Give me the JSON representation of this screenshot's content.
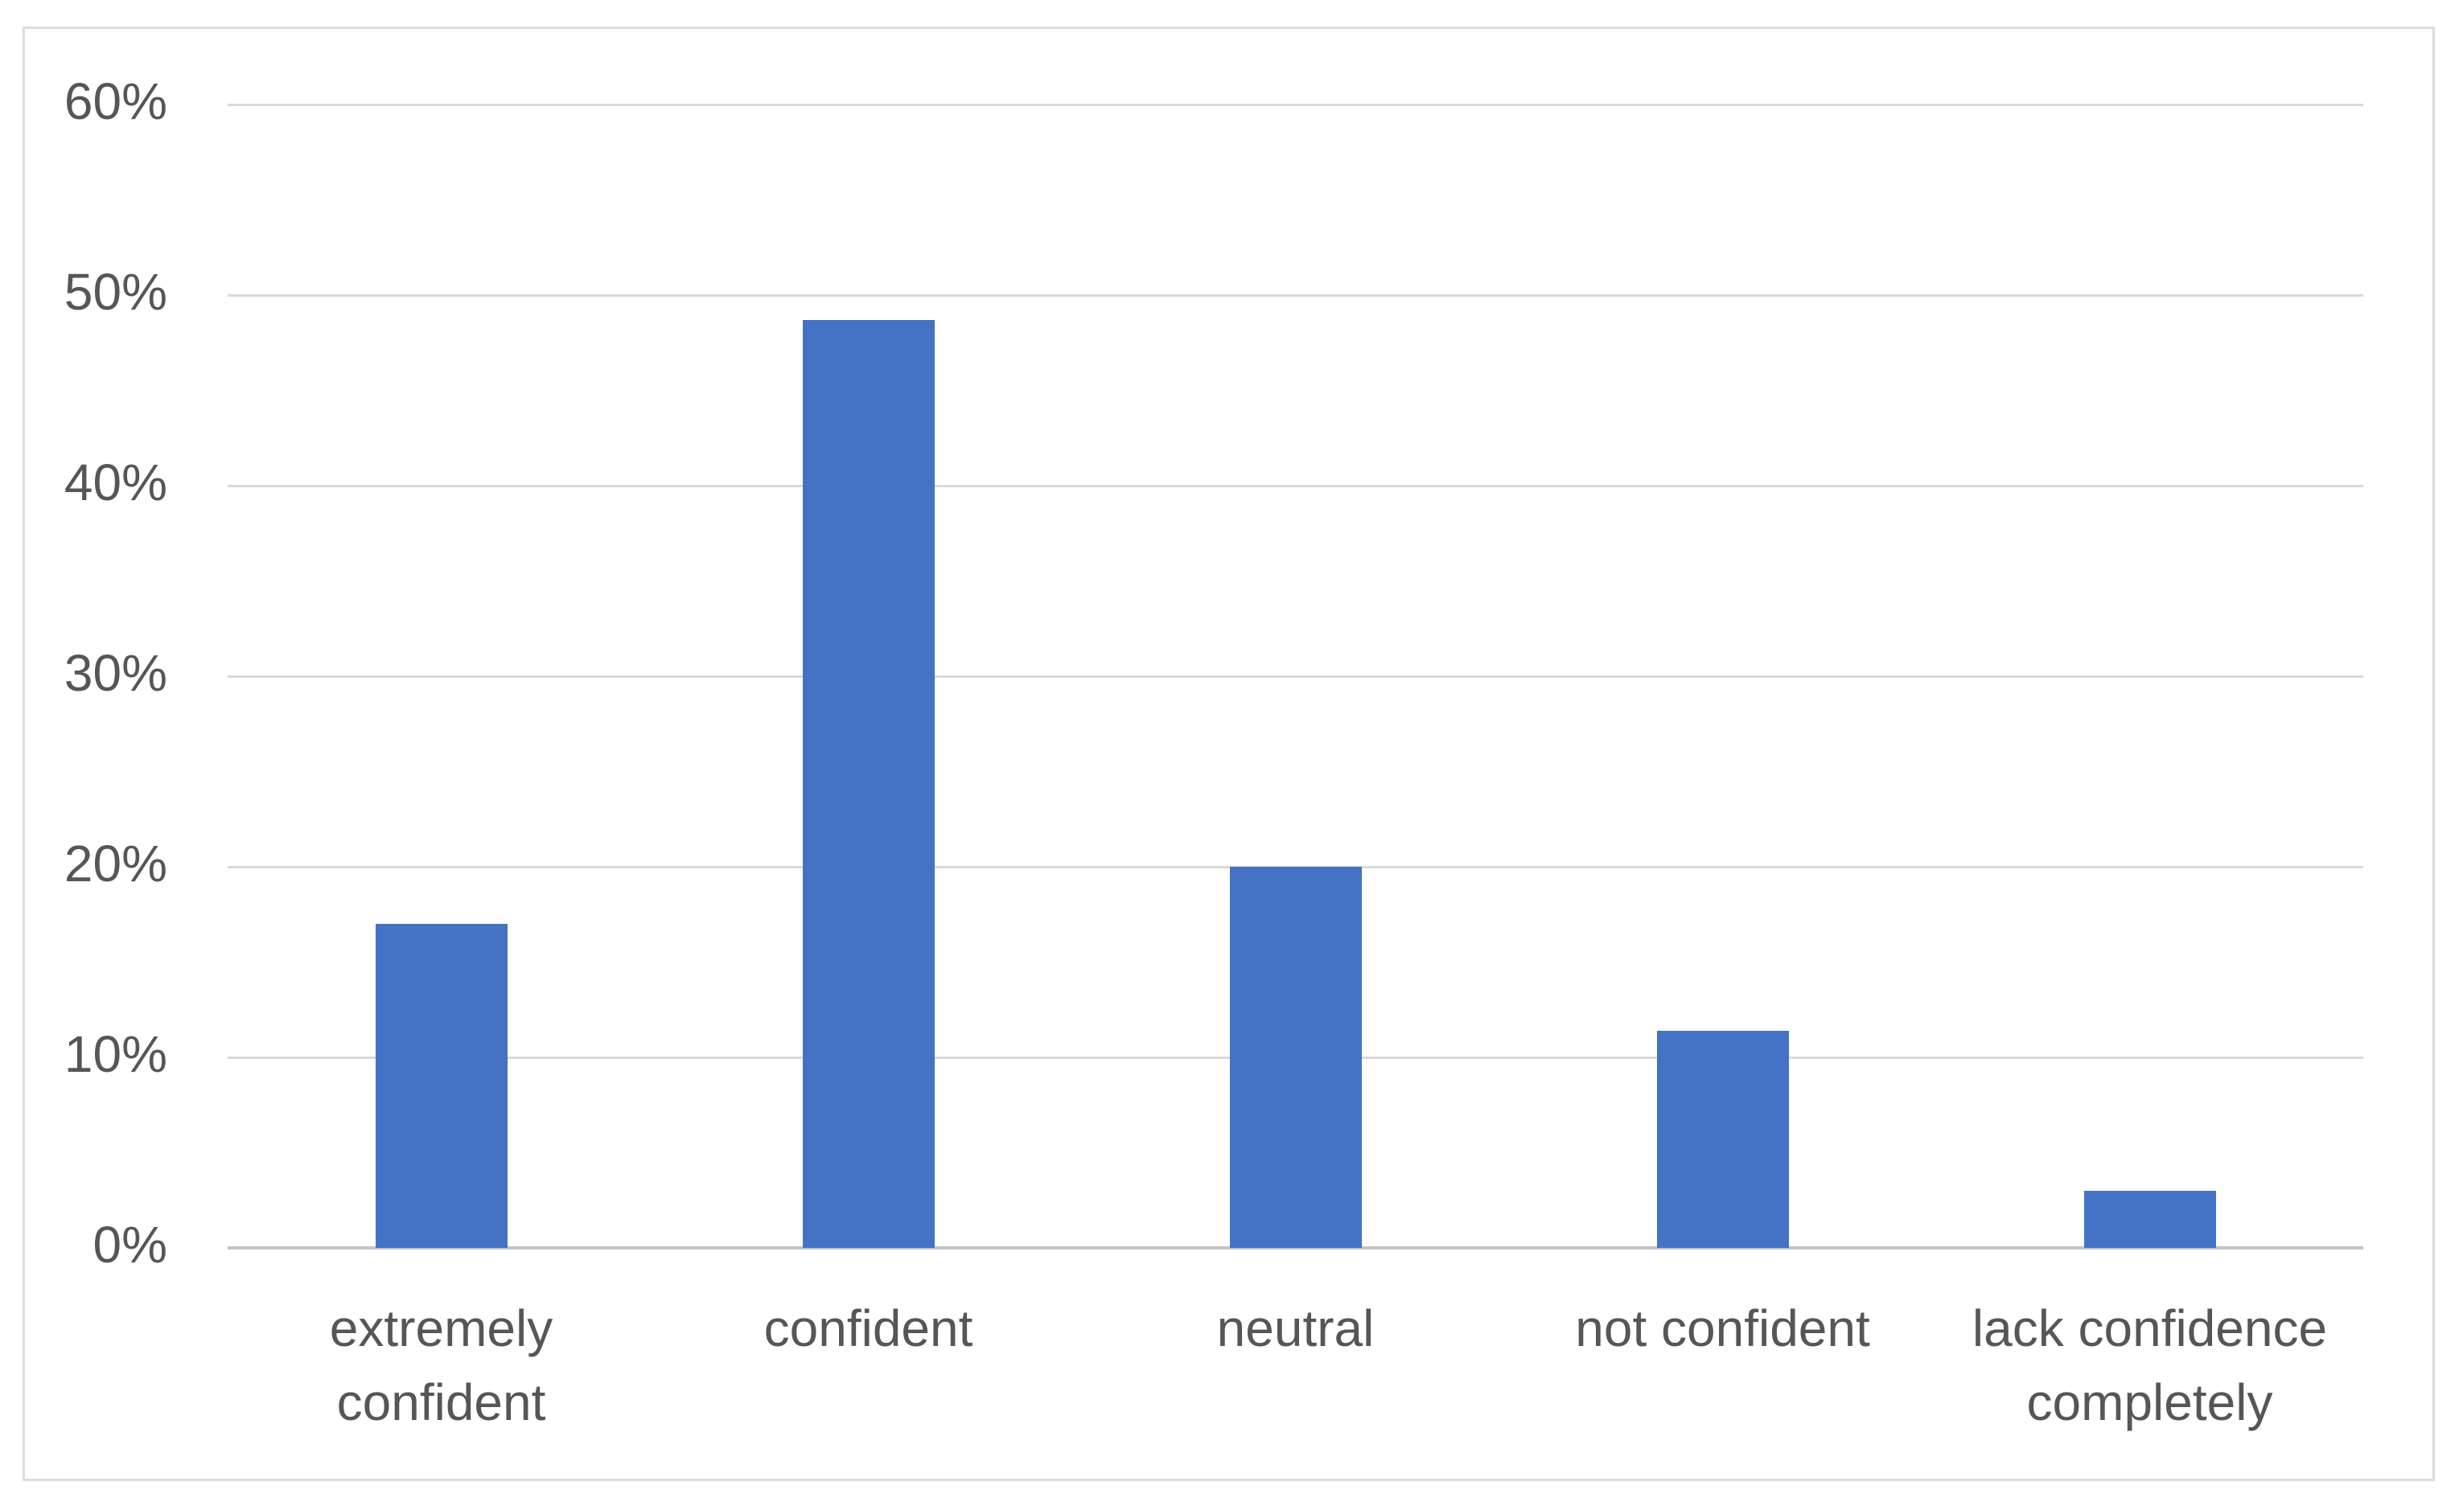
{
  "chart_data": {
    "type": "bar",
    "categories": [
      "extremely\nconfident",
      "confident",
      "neutral",
      "not confident",
      "lack confidence\ncompletely"
    ],
    "values": [
      17,
      48.7,
      20,
      11.4,
      3
    ],
    "title": "",
    "xlabel": "",
    "ylabel": "",
    "ylim": [
      0,
      60
    ],
    "ytick_step": 10,
    "ytick_labels": [
      "0%",
      "10%",
      "20%",
      "30%",
      "40%",
      "50%",
      "60%"
    ],
    "grid": true,
    "legend": false,
    "colors": {
      "bar": "#4472c4",
      "gridline": "#d9d9d9",
      "axis_line": "#c3c3c3",
      "label_text": "#565656",
      "frame_border": "#dcdcdc",
      "background": "#ffffff"
    }
  }
}
